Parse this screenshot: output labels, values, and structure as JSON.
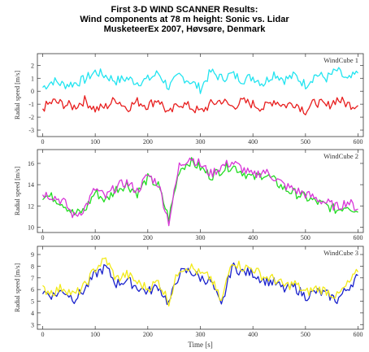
{
  "title_lines": [
    "First 3-D WIND SCANNER Results:",
    "Wind components at 78 m height: Sonic vs. Lidar",
    "MusketeerEx 2007, Høvsøre, Denmark"
  ],
  "colors": {
    "sonic1": "#22e4f0",
    "lidar1": "#e81e1e",
    "sonic2": "#22dd22",
    "lidar2": "#d836d8",
    "sonic3": "#1a22cc",
    "lidar3": "#f2ea1a",
    "frame": "#333333"
  },
  "chart_data": [
    {
      "type": "line",
      "panel_label": "WindCube 1",
      "ylabel": "Radial speed [m/s]",
      "xlim": [
        -10,
        610
      ],
      "ylim": [
        -3.5,
        2.9
      ],
      "xticks": [
        0,
        100,
        200,
        300,
        400,
        500,
        600
      ],
      "yticks": [
        -3,
        -2,
        -1,
        0,
        1,
        2
      ],
      "x": [
        0,
        20,
        40,
        60,
        80,
        100,
        120,
        140,
        160,
        180,
        200,
        220,
        240,
        260,
        280,
        300,
        320,
        340,
        360,
        380,
        400,
        420,
        440,
        460,
        480,
        500,
        520,
        540,
        560,
        580,
        600
      ],
      "series": [
        {
          "color_key": "sonic1",
          "values": [
            0.3,
            0.8,
            0.5,
            0.6,
            0.9,
            1.5,
            1.2,
            0.8,
            1.0,
            0.7,
            0.9,
            1.4,
            0.3,
            1.2,
            0.8,
            0.2,
            1.5,
            1.0,
            1.3,
            0.9,
            1.1,
            0.6,
            1.4,
            0.9,
            1.2,
            0.5,
            1.3,
            1.0,
            1.6,
            0.8,
            1.4
          ]
        },
        {
          "color_key": "lidar1",
          "values": [
            -1.3,
            -0.8,
            -1.0,
            -1.2,
            -0.7,
            -1.4,
            -1.2,
            -0.6,
            -1.3,
            -0.8,
            -1.1,
            -0.6,
            -1.8,
            -0.9,
            -1.2,
            -1.6,
            -1.0,
            -0.7,
            -1.2,
            -0.8,
            -1.0,
            -1.3,
            -0.7,
            -1.1,
            -0.9,
            -1.5,
            -0.8,
            -1.2,
            -0.6,
            -1.0,
            -1.1
          ]
        }
      ]
    },
    {
      "type": "line",
      "panel_label": "WindCube 2",
      "ylabel": "Radial speed [m/s]",
      "xlim": [
        -10,
        610
      ],
      "ylim": [
        9.5,
        17.3
      ],
      "xticks": [
        0,
        100,
        200,
        300,
        400,
        500,
        600
      ],
      "yticks": [
        10,
        12,
        14,
        16
      ],
      "x": [
        0,
        20,
        40,
        60,
        80,
        100,
        120,
        140,
        160,
        180,
        200,
        220,
        240,
        260,
        280,
        300,
        320,
        340,
        360,
        380,
        400,
        420,
        440,
        460,
        480,
        500,
        520,
        540,
        560,
        580,
        600
      ],
      "series": [
        {
          "color_key": "sonic2",
          "values": [
            13.0,
            12.8,
            12.2,
            11.2,
            11.6,
            13.3,
            12.5,
            13.6,
            14.0,
            13.2,
            14.6,
            13.9,
            10.8,
            15.4,
            16.2,
            15.6,
            14.8,
            15.4,
            15.8,
            15.2,
            14.6,
            15.0,
            14.4,
            13.6,
            13.2,
            12.8,
            12.4,
            12.0,
            11.6,
            12.1,
            11.4
          ]
        },
        {
          "color_key": "lidar2",
          "values": [
            13.2,
            12.9,
            12.4,
            11.0,
            11.8,
            13.6,
            12.8,
            13.8,
            14.2,
            13.4,
            14.9,
            14.1,
            10.5,
            15.8,
            16.6,
            15.9,
            15.0,
            15.7,
            16.1,
            15.5,
            14.8,
            15.3,
            14.7,
            13.9,
            13.5,
            13.1,
            12.7,
            12.3,
            11.9,
            12.4,
            11.7
          ]
        }
      ]
    },
    {
      "type": "line",
      "panel_label": "WindCube 3",
      "ylabel": "Radial speed [m/s]",
      "xlabel": "Time [s]",
      "xlim": [
        -10,
        610
      ],
      "ylim": [
        2.6,
        9.7
      ],
      "xticks": [
        0,
        100,
        200,
        300,
        400,
        500,
        600
      ],
      "yticks": [
        3,
        4,
        5,
        6,
        7,
        8,
        9
      ],
      "x": [
        0,
        20,
        40,
        60,
        80,
        100,
        120,
        140,
        160,
        180,
        200,
        220,
        240,
        260,
        280,
        300,
        320,
        340,
        360,
        380,
        400,
        420,
        440,
        460,
        480,
        500,
        520,
        540,
        560,
        580,
        600
      ],
      "series": [
        {
          "color_key": "sonic3",
          "values": [
            5.8,
            5.5,
            5.9,
            5.2,
            6.0,
            7.3,
            7.9,
            6.5,
            6.8,
            6.2,
            5.8,
            6.3,
            4.8,
            7.4,
            7.6,
            7.0,
            6.7,
            4.5,
            8.0,
            7.5,
            7.4,
            6.8,
            6.6,
            6.0,
            6.2,
            5.4,
            5.8,
            5.6,
            5.1,
            6.1,
            7.2
          ]
        },
        {
          "color_key": "lidar3",
          "values": [
            6.0,
            5.8,
            6.2,
            5.5,
            6.3,
            7.8,
            8.6,
            6.9,
            7.3,
            6.6,
            6.1,
            6.7,
            5.0,
            7.8,
            8.0,
            7.3,
            7.0,
            4.9,
            8.5,
            7.9,
            7.8,
            7.1,
            6.9,
            6.3,
            6.5,
            5.7,
            6.1,
            5.9,
            5.4,
            6.4,
            7.5
          ]
        }
      ]
    }
  ]
}
